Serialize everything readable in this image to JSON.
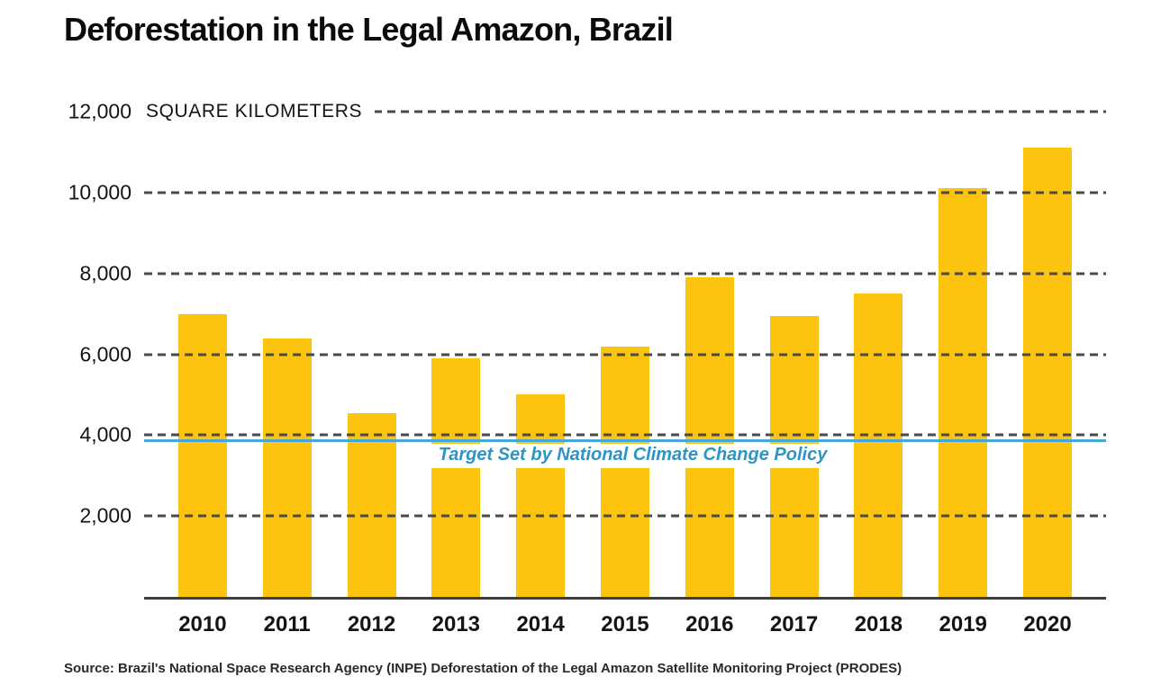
{
  "colors": {
    "bar": "#FCC40F",
    "target_line": "#47A6D8",
    "target_text": "#2D95C6",
    "gridline": "#4A4A4A",
    "axis": "#3E3E3E",
    "text": "#141414"
  },
  "chart_data": {
    "type": "bar",
    "title": "Deforestation in the Legal Amazon, Brazil",
    "ylabel": "SQUARE KILOMETERS",
    "categories": [
      "2010",
      "2011",
      "2012",
      "2013",
      "2014",
      "2015",
      "2016",
      "2017",
      "2018",
      "2019",
      "2020"
    ],
    "values": [
      7000,
      6400,
      4550,
      5900,
      5000,
      6200,
      7900,
      6950,
      7500,
      10100,
      11100
    ],
    "ylim": [
      0,
      12000
    ],
    "yticks": [
      2000,
      4000,
      6000,
      8000,
      10000,
      12000
    ],
    "ytick_labels": [
      "2,000",
      "4,000",
      "6,000",
      "8,000",
      "10,000",
      "12,000"
    ],
    "grid": "horizontal-dashed",
    "legend": "none",
    "target_line": {
      "value": 3900,
      "label": "Target Set by National Climate Change Policy"
    },
    "source": "Source: Brazil's National Space Research Agency (INPE) Deforestation of the Legal Amazon Satellite Monitoring Project (PRODES)"
  }
}
